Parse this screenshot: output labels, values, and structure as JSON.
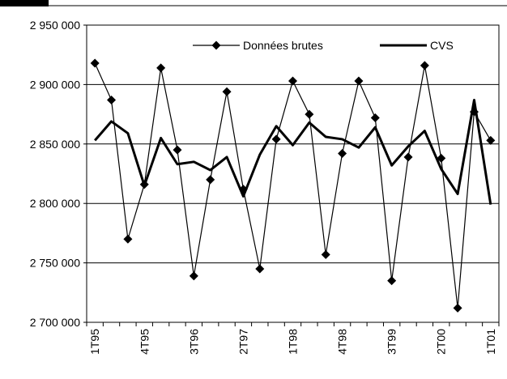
{
  "chart_data": {
    "type": "line",
    "categories": [
      "1T95",
      null,
      null,
      "4T95",
      null,
      null,
      "3T96",
      null,
      null,
      "2T97",
      null,
      null,
      "1T98",
      null,
      null,
      "4T98",
      null,
      null,
      "3T99",
      null,
      null,
      "2T00",
      null,
      null,
      "1T01"
    ],
    "series": [
      {
        "name": "Données brutes",
        "color": "#000000",
        "marker": "diamond",
        "width": 1.2,
        "values": [
          2918000,
          2887000,
          2770000,
          2816000,
          2914000,
          2845000,
          2739000,
          2820000,
          2894000,
          2812000,
          2745000,
          2854000,
          2903000,
          2875000,
          2757000,
          2842000,
          2903000,
          2872000,
          2735000,
          2839000,
          2916000,
          2838000,
          2712000,
          2877000,
          2853000
        ]
      },
      {
        "name": "CVS",
        "color": "#000000",
        "marker": "none",
        "width": 3,
        "values": [
          2853000,
          2869000,
          2859000,
          2815000,
          2855000,
          2833000,
          2835000,
          2828000,
          2839000,
          2806000,
          2841000,
          2865000,
          2849000,
          2868000,
          2856000,
          2854000,
          2847000,
          2864000,
          2832000,
          2848000,
          2861000,
          2829000,
          2808000,
          2887000,
          2799000
        ]
      }
    ],
    "ylim": [
      2700000,
      2950000
    ],
    "yticks": [
      {
        "value": 2700000,
        "label": "2 700 000"
      },
      {
        "value": 2750000,
        "label": "2 750 000"
      },
      {
        "value": 2800000,
        "label": "2 800 000"
      },
      {
        "value": 2850000,
        "label": "2 850 000"
      },
      {
        "value": 2900000,
        "label": "2 900 000"
      },
      {
        "value": 2950000,
        "label": "2 950 000"
      }
    ],
    "grid": true,
    "legend": "top"
  }
}
